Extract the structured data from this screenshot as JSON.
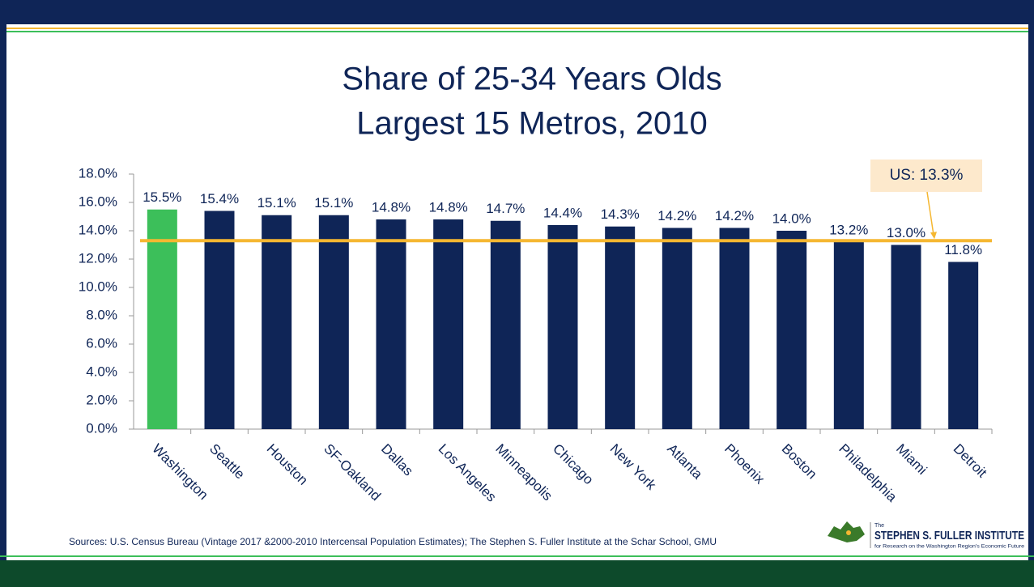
{
  "chart_data": {
    "type": "bar",
    "title": "Share of 25-34 Years Olds",
    "subtitle": "Largest 15 Metros, 2010",
    "categories": [
      "Washington",
      "Seattle",
      "Houston",
      "SF-Oakland",
      "Dallas",
      "Los Angeles",
      "Minneapolis",
      "Chicago",
      "New York",
      "Atlanta",
      "Phoenix",
      "Boston",
      "Philadelphia",
      "Miami",
      "Detroit"
    ],
    "values": [
      15.5,
      15.4,
      15.1,
      15.1,
      14.8,
      14.8,
      14.7,
      14.4,
      14.3,
      14.2,
      14.2,
      14.0,
      13.2,
      13.0,
      11.8
    ],
    "value_labels": [
      "15.5%",
      "15.4%",
      "15.1%",
      "15.1%",
      "14.8%",
      "14.8%",
      "14.7%",
      "14.4%",
      "14.3%",
      "14.2%",
      "14.2%",
      "14.0%",
      "13.2%",
      "13.0%",
      "11.8%"
    ],
    "colors": [
      "#3cbf5a",
      "#0f2557",
      "#0f2557",
      "#0f2557",
      "#0f2557",
      "#0f2557",
      "#0f2557",
      "#0f2557",
      "#0f2557",
      "#0f2557",
      "#0f2557",
      "#0f2557",
      "#0f2557",
      "#0f2557",
      "#0f2557"
    ],
    "ylim": [
      0,
      18
    ],
    "yticks": [
      {
        "value": 0,
        "label": "0.0%"
      },
      {
        "value": 2,
        "label": "2.0%"
      },
      {
        "value": 4,
        "label": "4.0%"
      },
      {
        "value": 6,
        "label": "6.0%"
      },
      {
        "value": 8,
        "label": "8.0%"
      },
      {
        "value": 10,
        "label": "10.0%"
      },
      {
        "value": 12,
        "label": "12.0%"
      },
      {
        "value": 14,
        "label": "14.0%"
      },
      {
        "value": 16,
        "label": "16.0%"
      },
      {
        "value": 18,
        "label": "18.0%"
      }
    ],
    "grid": false,
    "reference_line": {
      "value": 13.3,
      "label": "US: 13.3%",
      "color": "#f5b731"
    }
  },
  "footer": {
    "source": "Sources: U.S. Census Bureau (Vintage 2017 &2000-2010 Intercensal Population Estimates); The Stephen S. Fuller Institute at the Schar School, GMU",
    "logo_small": "The",
    "logo_name": "STEPHEN S. FULLER INSTITUTE",
    "logo_tagline": "for Research on the Washington Region's Economic Future"
  }
}
